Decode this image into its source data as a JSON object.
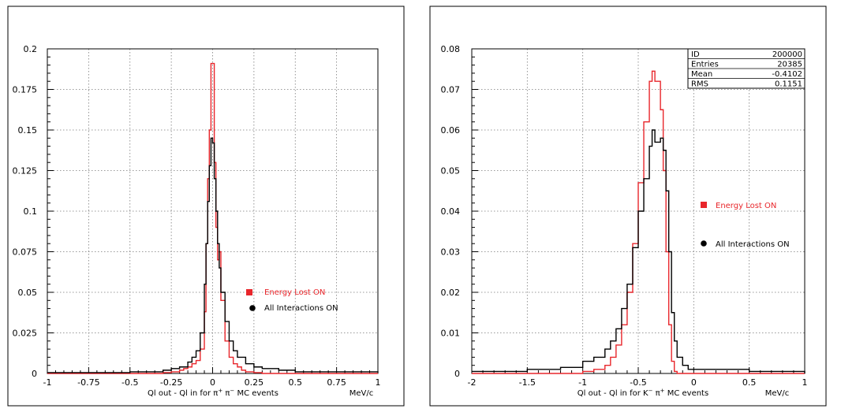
{
  "chart_data": [
    {
      "type": "line",
      "xlabel_parts": {
        "pre": "Ql out - Ql in  for ",
        "a": "π",
        "asup": "+",
        "b": " π",
        "bsup": "−",
        "post": " MC events"
      },
      "unit_label": "MeV/c",
      "xlim": [
        -1,
        1
      ],
      "ylim": [
        0,
        0.2
      ],
      "xticks": [
        "-1",
        "-0.75",
        "-0.5",
        "-0.25",
        "0",
        "0.25",
        "0.5",
        "0.75",
        "1"
      ],
      "xtick_values": [
        -1,
        -0.75,
        -0.5,
        -0.25,
        0,
        0.25,
        0.5,
        0.75,
        1
      ],
      "yticks": [
        "0",
        "0.025",
        "0.05",
        "0.075",
        "0.1",
        "0.125",
        "0.15",
        "0.175",
        "0.2"
      ],
      "ytick_values": [
        0,
        0.025,
        0.05,
        0.075,
        0.1,
        0.125,
        0.15,
        0.175,
        0.2
      ],
      "grid": true,
      "legend": [
        {
          "label": "Energy Lost ON",
          "marker": "square",
          "color": "#e8262b"
        },
        {
          "label": "All Interactions ON",
          "marker": "circle",
          "color": "#000000"
        }
      ],
      "series": [
        {
          "name": "Energy Lost ON",
          "color": "#e8262b",
          "x": [
            -1.0,
            -0.4,
            -0.3,
            -0.25,
            -0.2,
            -0.175,
            -0.15,
            -0.125,
            -0.1,
            -0.075,
            -0.05,
            -0.04,
            -0.03,
            -0.02,
            -0.01,
            0.0,
            0.01,
            0.02,
            0.03,
            0.04,
            0.05,
            0.075,
            0.1,
            0.125,
            0.15,
            0.175,
            0.2,
            0.25,
            0.3,
            0.4,
            1.0
          ],
          "y": [
            0.0,
            0.0,
            0.0005,
            0.001,
            0.002,
            0.003,
            0.004,
            0.006,
            0.008,
            0.015,
            0.038,
            0.08,
            0.12,
            0.15,
            0.191,
            0.191,
            0.13,
            0.09,
            0.07,
            0.075,
            0.045,
            0.02,
            0.01,
            0.006,
            0.004,
            0.002,
            0.001,
            0.0005,
            0.0,
            0.0,
            0.0
          ]
        },
        {
          "name": "All Interactions ON",
          "color": "#000000",
          "x": [
            -1.0,
            -0.5,
            -0.4,
            -0.3,
            -0.25,
            -0.2,
            -0.15,
            -0.125,
            -0.1,
            -0.075,
            -0.05,
            -0.04,
            -0.03,
            -0.02,
            -0.01,
            0.0,
            0.01,
            0.02,
            0.03,
            0.04,
            0.05,
            0.075,
            0.1,
            0.125,
            0.15,
            0.2,
            0.25,
            0.3,
            0.4,
            0.5,
            1.0
          ],
          "y": [
            0.0005,
            0.001,
            0.001,
            0.002,
            0.003,
            0.004,
            0.007,
            0.01,
            0.014,
            0.025,
            0.055,
            0.08,
            0.106,
            0.128,
            0.145,
            0.142,
            0.12,
            0.1,
            0.08,
            0.065,
            0.05,
            0.032,
            0.02,
            0.014,
            0.01,
            0.006,
            0.004,
            0.003,
            0.002,
            0.001,
            0.0005
          ]
        }
      ]
    },
    {
      "type": "line",
      "xlabel_parts": {
        "pre": "Ql out - Ql in  for ",
        "a": "K",
        "asup": "−",
        "b": " π",
        "bsup": "+",
        "post": " MC events"
      },
      "unit_label": "MeV/c",
      "xlim": [
        -2,
        1
      ],
      "ylim": [
        0,
        0.08
      ],
      "xticks": [
        "-2",
        "-1.5",
        "-1",
        "-0.5",
        "0",
        "0.5",
        "1"
      ],
      "xtick_values": [
        -2,
        -1.5,
        -1,
        -0.5,
        0,
        0.5,
        1
      ],
      "yticks": [
        "0",
        "0.01",
        "0.02",
        "0.03",
        "0.04",
        "0.05",
        "0.06",
        "0.07",
        "0.08"
      ],
      "ytick_values": [
        0,
        0.01,
        0.02,
        0.03,
        0.04,
        0.05,
        0.06,
        0.07,
        0.08
      ],
      "grid": true,
      "legend": [
        {
          "label": "Energy Lost ON",
          "marker": "square",
          "color": "#e8262b"
        },
        {
          "label": "All Interactions ON",
          "marker": "circle",
          "color": "#000000"
        }
      ],
      "stats": [
        {
          "label": "ID",
          "value": "200000"
        },
        {
          "label": "Entries",
          "value": "20385"
        },
        {
          "label": "Mean",
          "value": "-0.4102"
        },
        {
          "label": "RMS",
          "value": "0.1151"
        }
      ],
      "series": [
        {
          "name": "Energy Lost ON",
          "color": "#e8262b",
          "x": [
            -2.0,
            -1.2,
            -1.0,
            -0.9,
            -0.8,
            -0.75,
            -0.7,
            -0.65,
            -0.6,
            -0.55,
            -0.5,
            -0.45,
            -0.4,
            -0.375,
            -0.35,
            -0.3,
            -0.275,
            -0.25,
            -0.225,
            -0.2,
            -0.175,
            -0.15,
            1.0
          ],
          "y": [
            0.0,
            0.0,
            0.0005,
            0.001,
            0.002,
            0.004,
            0.007,
            0.012,
            0.02,
            0.032,
            0.047,
            0.062,
            0.072,
            0.0745,
            0.072,
            0.065,
            0.05,
            0.03,
            0.012,
            0.003,
            0.0005,
            0.0,
            0.0
          ]
        },
        {
          "name": "All Interactions ON",
          "color": "#000000",
          "x": [
            -2.0,
            -1.5,
            -1.2,
            -1.0,
            -0.9,
            -0.8,
            -0.75,
            -0.7,
            -0.65,
            -0.6,
            -0.55,
            -0.5,
            -0.45,
            -0.4,
            -0.375,
            -0.35,
            -0.3,
            -0.275,
            -0.25,
            -0.225,
            -0.2,
            -0.175,
            -0.15,
            -0.1,
            -0.05,
            0.0,
            0.5,
            1.0
          ],
          "y": [
            0.0005,
            0.001,
            0.0015,
            0.003,
            0.004,
            0.006,
            0.008,
            0.011,
            0.016,
            0.022,
            0.031,
            0.04,
            0.048,
            0.056,
            0.06,
            0.057,
            0.058,
            0.055,
            0.045,
            0.03,
            0.015,
            0.008,
            0.004,
            0.002,
            0.001,
            0.001,
            0.0005,
            0.0
          ]
        }
      ]
    }
  ]
}
